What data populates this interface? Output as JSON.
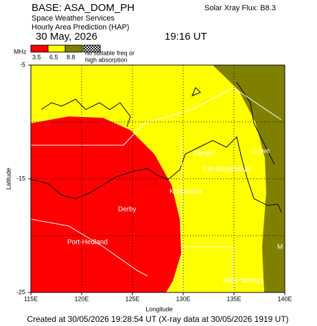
{
  "header": {
    "base": "BASE: ASA_DOM_PH",
    "org": "Space Weather Services",
    "product": "Hourly Area Prediction (HAP)",
    "date": "30 May, 2026",
    "time": "19:16 UT",
    "xray": "Solar Xray Flux: B8.3"
  },
  "chart_data": {
    "type": "map",
    "legend": {
      "unit": "MHz",
      "bins": [
        3.5,
        6.5,
        8.8
      ],
      "colors": [
        "#ff0000",
        "#ffff00",
        "#808000"
      ],
      "no_freq": [
        "no suitable freq or",
        "high absorption"
      ]
    },
    "xlabel": "Longitude",
    "ylabel": "Latitude",
    "xlim": [
      115,
      140
    ],
    "ylim": [
      -25,
      -5
    ],
    "xticks": [
      {
        "value": 115,
        "label": "115E"
      },
      {
        "value": 120,
        "label": "120E"
      },
      {
        "value": 125,
        "label": "125E"
      },
      {
        "value": 130,
        "label": "130E"
      },
      {
        "value": 135,
        "label": "135E"
      },
      {
        "value": 140,
        "label": "140E"
      }
    ],
    "yticks": [
      -5,
      -15,
      -25
    ],
    "ygrid": [
      -10,
      -15,
      -20
    ],
    "places": [
      "Darwin",
      "Cowe",
      "FIR BRISBANE",
      "Kununurra",
      "Derby",
      "Port-Hedland",
      "Alice-Springs",
      "M"
    ]
  },
  "footer": "Created at 30/05/2026 19:28:54 UT (X-ray data at 30/05/2026 1919 UT)"
}
